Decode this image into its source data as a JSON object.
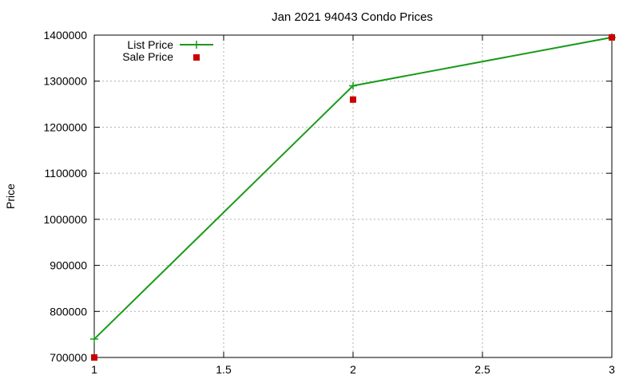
{
  "chart_data": {
    "type": "line",
    "title": "Jan 2021 94043 Condo Prices",
    "xlabel": "",
    "ylabel": "Price",
    "xlim": [
      1,
      3
    ],
    "ylim": [
      700000,
      1400000
    ],
    "x_ticks": [
      1,
      1.5,
      2,
      2.5,
      3
    ],
    "x_tick_labels": [
      "1",
      "1.5",
      "2",
      "2.5",
      "3"
    ],
    "y_ticks": [
      700000,
      800000,
      900000,
      1000000,
      1100000,
      1200000,
      1300000,
      1400000
    ],
    "y_tick_labels": [
      "700000",
      "800000",
      "900000",
      "1000000",
      "1100000",
      "1200000",
      "1300000",
      "1400000"
    ],
    "grid": true,
    "legend_position": "top-left",
    "series": [
      {
        "name": "List Price",
        "style": "line-plus",
        "color": "#1a9a1a",
        "x": [
          1,
          2,
          3
        ],
        "values": [
          740000,
          1290000,
          1395000
        ]
      },
      {
        "name": "Sale Price",
        "style": "square-markers",
        "color": "#cc0000",
        "x": [
          1,
          2,
          3
        ],
        "values": [
          700000,
          1260000,
          1395000
        ]
      }
    ]
  }
}
